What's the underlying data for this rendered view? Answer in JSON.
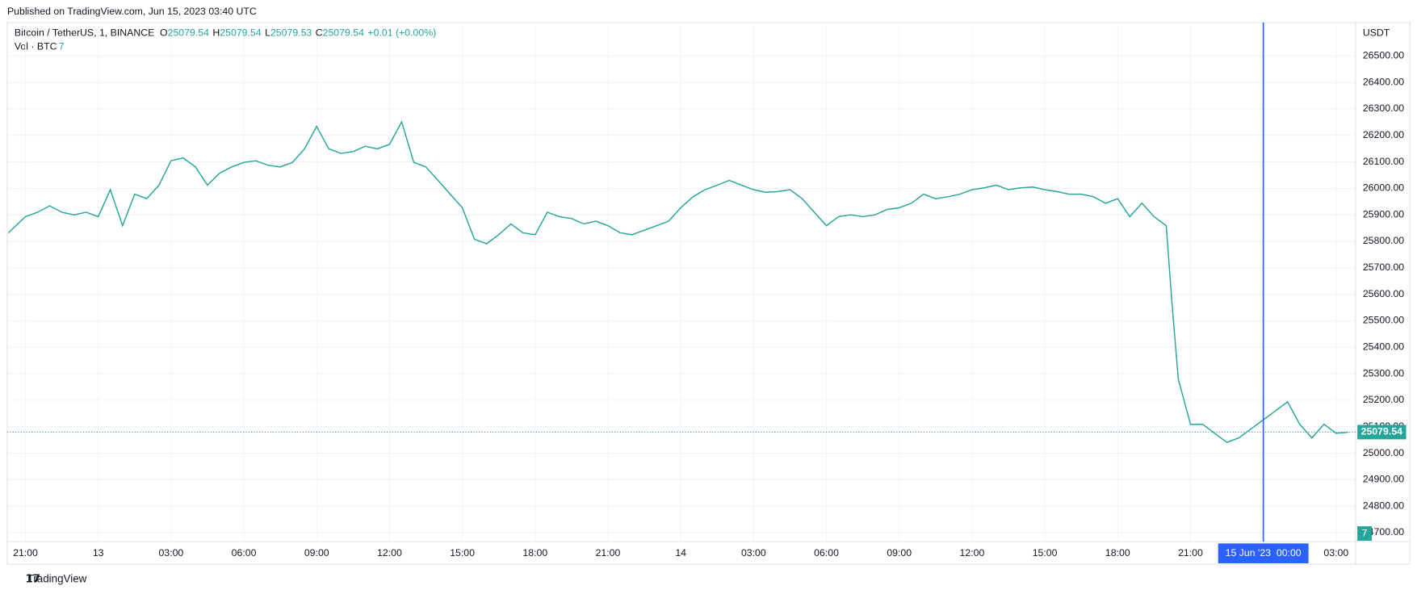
{
  "header": {
    "published": "Published on TradingView.com, Jun 15, 2023 03:40 UTC",
    "brand": "TradingView"
  },
  "chart_data": {
    "type": "line",
    "title": "Bitcoin / TetherUS, 1, BINANCE",
    "ohlc": [
      {
        "label": "O",
        "value": 25079.54
      },
      {
        "label": "H",
        "value": 25079.54
      },
      {
        "label": "L",
        "value": 25079.53
      },
      {
        "label": "C",
        "value": 25079.54
      }
    ],
    "change": "+0.01 (+0.00%)",
    "volume_label": "Vol · BTC",
    "volume_value": 7,
    "y_unit": "USDT",
    "last_price": 25079.54,
    "crosshair": {
      "x": 51,
      "label": "15 Jun '23  00:00"
    },
    "x": [
      -0.7,
      0,
      0.5,
      1,
      1.5,
      2,
      2.5,
      3,
      3.5,
      4,
      4.5,
      5,
      5.5,
      6,
      6.5,
      7,
      7.5,
      8,
      8.5,
      9,
      9.5,
      10,
      10.5,
      11,
      11.5,
      12,
      12.5,
      13,
      13.5,
      14,
      14.5,
      15,
      15.5,
      16,
      16.5,
      17,
      17.5,
      18,
      18.5,
      19,
      19.5,
      20,
      20.5,
      21,
      21.5,
      22,
      22.5,
      23,
      23.5,
      24,
      24.5,
      25,
      25.5,
      26,
      26.5,
      27,
      27.5,
      28,
      28.5,
      29,
      29.5,
      30,
      30.5,
      31,
      31.5,
      32,
      32.5,
      33,
      33.5,
      34,
      34.5,
      35,
      35.5,
      36,
      36.5,
      37,
      37.5,
      38,
      38.5,
      39,
      39.5,
      40,
      40.5,
      41,
      41.5,
      42,
      42.5,
      43,
      43.5,
      44,
      44.5,
      45,
      45.5,
      46,
      46.5,
      47,
      47.25,
      47.5,
      48,
      48.5,
      49,
      49.5,
      50,
      50.5,
      51,
      51.5,
      52,
      52.5,
      53,
      53.5,
      54,
      54.5
    ],
    "series": [
      {
        "name": "BTCUSDT",
        "color": "#26a69a",
        "values": [
          25832,
          25893,
          25910,
          25934,
          25910,
          25900,
          25910,
          25893,
          25995,
          25859,
          25978,
          25961,
          26012,
          26104,
          26115,
          26081,
          26012,
          26057,
          26081,
          26098,
          26104,
          26087,
          26081,
          26098,
          26149,
          26234,
          26149,
          26132,
          26139,
          26159,
          26149,
          26166,
          26251,
          26098,
          26081,
          26030,
          25978,
          25927,
          25808,
          25791,
          25825,
          25866,
          25832,
          25825,
          25910,
          25893,
          25886,
          25866,
          25876,
          25859,
          25832,
          25825,
          25842,
          25859,
          25876,
          25927,
          25968,
          25995,
          26012,
          26030,
          26012,
          25995,
          25985,
          25988,
          25995,
          25961,
          25910,
          25859,
          25893,
          25900,
          25893,
          25900,
          25920,
          25927,
          25944,
          25978,
          25961,
          25968,
          25978,
          25995,
          26002,
          26012,
          25995,
          26002,
          26005,
          25995,
          25988,
          25978,
          25978,
          25968,
          25944,
          25961,
          25893,
          25944,
          25893,
          25859,
          25552,
          25279,
          25109,
          25109,
          25075,
          25041,
          25058,
          25092,
          25126,
          25160,
          25194,
          25109,
          25058,
          25109,
          25075,
          25079
        ]
      }
    ],
    "xlim": [
      -0.75,
      54.8
    ],
    "ylim": [
      24666,
      26626
    ],
    "xticks": [
      {
        "value": 0,
        "label": "21:00"
      },
      {
        "value": 3,
        "label": "13"
      },
      {
        "value": 6,
        "label": "03:00"
      },
      {
        "value": 9,
        "label": "06:00"
      },
      {
        "value": 12,
        "label": "09:00"
      },
      {
        "value": 15,
        "label": "12:00"
      },
      {
        "value": 18,
        "label": "15:00"
      },
      {
        "value": 21,
        "label": "18:00"
      },
      {
        "value": 24,
        "label": "21:00"
      },
      {
        "value": 27,
        "label": "14"
      },
      {
        "value": 30,
        "label": "03:00"
      },
      {
        "value": 33,
        "label": "06:00"
      },
      {
        "value": 36,
        "label": "09:00"
      },
      {
        "value": 39,
        "label": "12:00"
      },
      {
        "value": 42,
        "label": "15:00"
      },
      {
        "value": 45,
        "label": "18:00"
      },
      {
        "value": 48,
        "label": "21:00"
      },
      {
        "value": 54,
        "label": "03:00"
      }
    ],
    "yticks": [
      {
        "value": 24700,
        "label": "24700.00"
      },
      {
        "value": 24800,
        "label": "24800.00"
      },
      {
        "value": 24900,
        "label": "24900.00"
      },
      {
        "value": 25000,
        "label": "25000.00"
      },
      {
        "value": 25100,
        "label": "25100.00"
      },
      {
        "value": 25200,
        "label": "25200.00"
      },
      {
        "value": 25300,
        "label": "25300.00"
      },
      {
        "value": 25400,
        "label": "25400.00"
      },
      {
        "value": 25500,
        "label": "25500.00"
      },
      {
        "value": 25600,
        "label": "25600.00"
      },
      {
        "value": 25700,
        "label": "25700.00"
      },
      {
        "value": 25800,
        "label": "25800.00"
      },
      {
        "value": 25900,
        "label": "25900.00"
      },
      {
        "value": 26000,
        "label": "26000.00"
      },
      {
        "value": 26100,
        "label": "26100.00"
      },
      {
        "value": 26200,
        "label": "26200.00"
      },
      {
        "value": 26300,
        "label": "26300.00"
      },
      {
        "value": 26400,
        "label": "26400.00"
      },
      {
        "value": 26500,
        "label": "26500.00"
      }
    ],
    "grid": true
  }
}
